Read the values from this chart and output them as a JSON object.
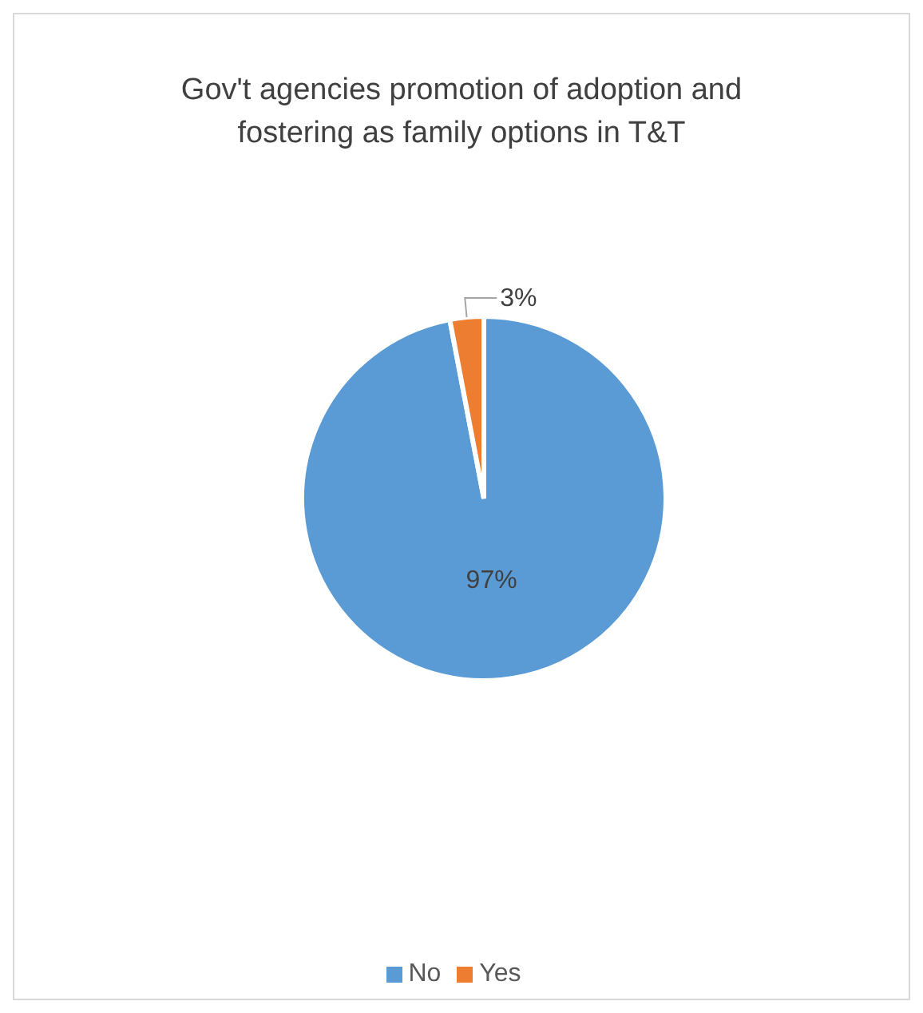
{
  "chart_data": {
    "type": "pie",
    "title": "Gov't agencies promotion of adoption and fostering as family options in T&T",
    "categories": [
      "No",
      "Yes"
    ],
    "values": [
      97,
      3
    ],
    "colors": [
      "#5b9bd5",
      "#ed7d31"
    ],
    "value_labels": [
      "97%",
      "3%"
    ],
    "legend": "bottom"
  }
}
